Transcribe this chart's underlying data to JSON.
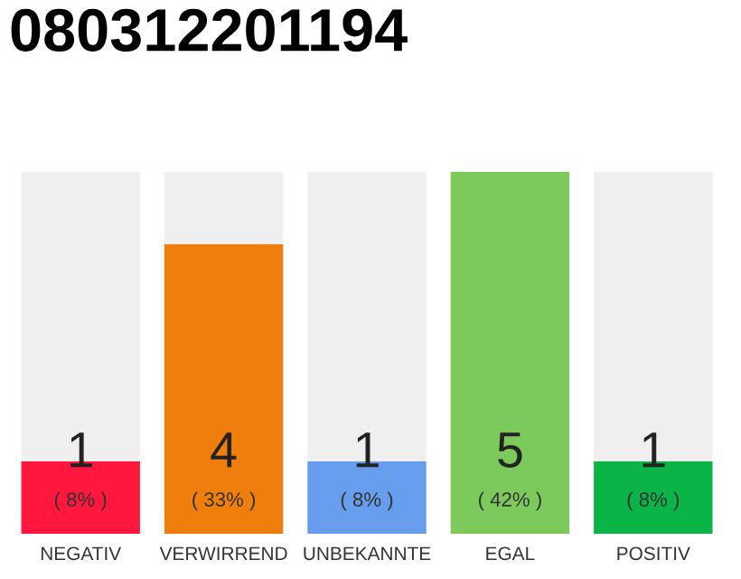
{
  "chart_data": {
    "type": "bar",
    "title": "080312201194",
    "categories": [
      "NEGATIV",
      "VERWIRREND",
      "UNBEKANNTE",
      "EGAL",
      "POSITIV"
    ],
    "values": [
      1,
      4,
      1,
      5,
      1
    ],
    "colors": [
      "#ff173d",
      "#f07e0d",
      "#669ded",
      "#7cc95c",
      "#0bb446"
    ],
    "data_labels": true,
    "annotations": [
      "( 8% )",
      "( 33% )",
      "( 8% )",
      "( 42% )",
      "( 8% )"
    ],
    "grid": false,
    "legend": false
  }
}
